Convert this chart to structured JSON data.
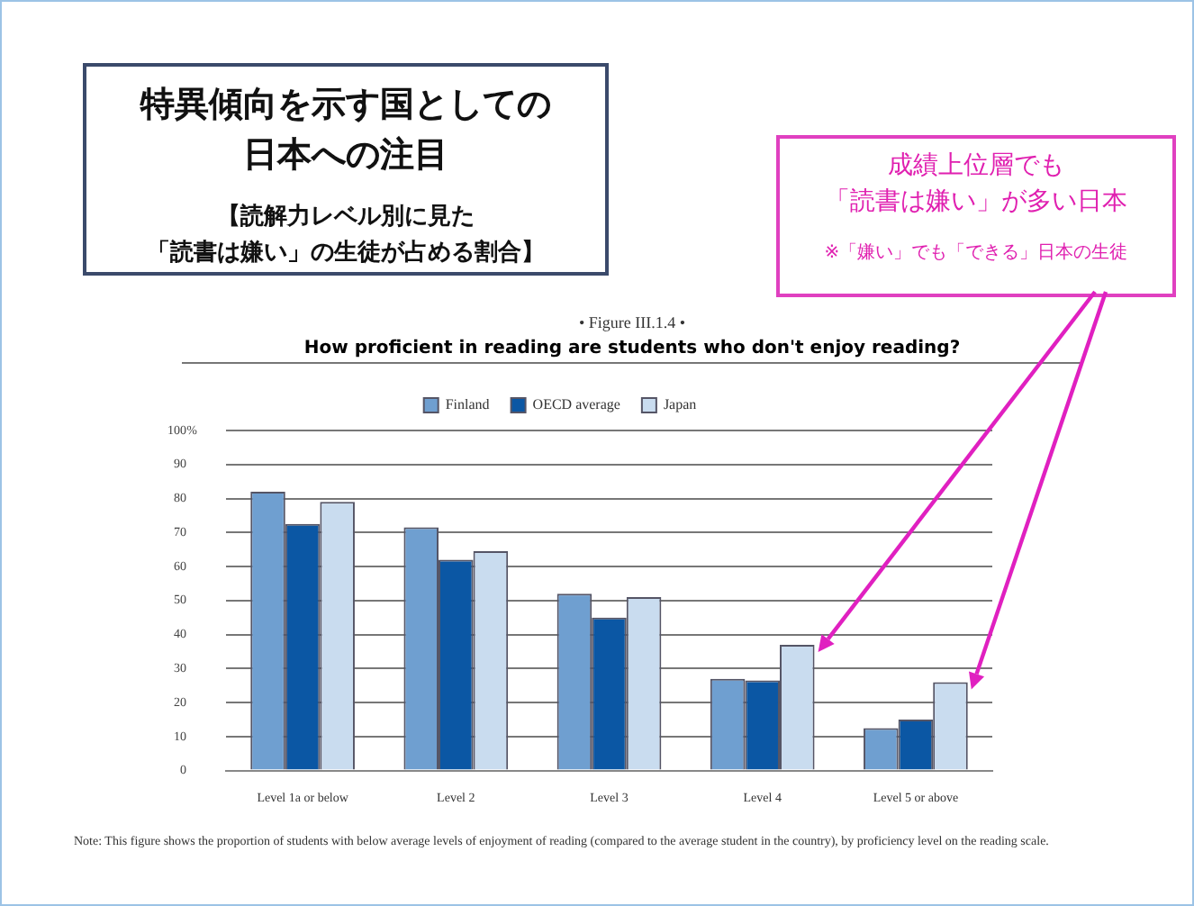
{
  "chart_data": {
    "type": "bar",
    "title": "How proficient in reading are students who don't enjoy reading?",
    "subtitle": "• Figure III.1.4 •",
    "ylabel": "%",
    "categories": [
      "Level 1a or below",
      "Level 2",
      "Level 3",
      "Level 4",
      "Level 5 or above"
    ],
    "series": [
      {
        "name": "Finland",
        "color": "#6f9fd0",
        "values": [
          82,
          71.5,
          52,
          27,
          12.5
        ]
      },
      {
        "name": "OECD average",
        "color": "#0b57a4",
        "values": [
          72.5,
          62,
          45,
          26.5,
          15
        ]
      },
      {
        "name": "Japan",
        "color": "#c9dcef",
        "values": [
          79,
          64.5,
          51,
          37,
          26
        ]
      }
    ],
    "ylim": [
      0,
      100
    ],
    "yticks": [
      0,
      10,
      20,
      30,
      40,
      50,
      60,
      70,
      80,
      90,
      100
    ],
    "grid": "y",
    "legend": "top",
    "annotations": [
      "特異傾向を示す国としての",
      "日本への注目",
      "【読解力レベル別に見た",
      "「読書は嫌い」の生徒が占める割合】",
      "成績上位層でも",
      "「読書は嫌い」が多い日本",
      "※「嫌い」でも「できる」日本の生徒",
      "Note: This figure shows the proportion of students with below average levels of enjoyment of reading (compared to the average student in the country), by proficiency level on the reading scale."
    ]
  }
}
